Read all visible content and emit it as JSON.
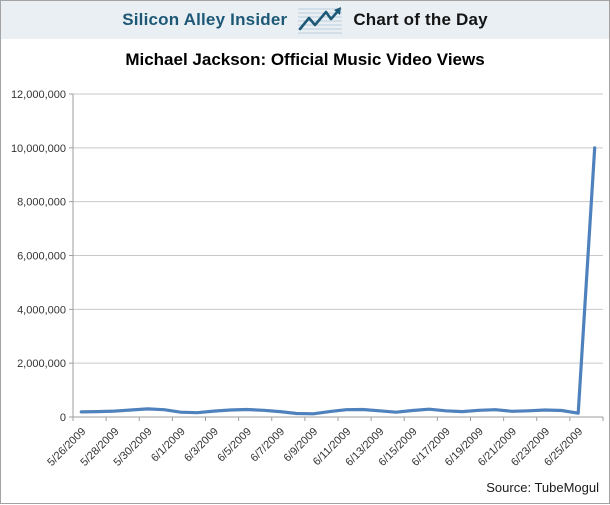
{
  "header": {
    "brand": "Silicon Alley Insider",
    "tagline": "Chart of the Day",
    "icon": "line-chart-icon"
  },
  "title": "Michael Jackson: Official Music Video Views",
  "source": "Source: TubeMogul",
  "colors": {
    "header_bg": "#eaeff4",
    "brand_text": "#1d5876",
    "line": "#4f81bd",
    "gridline": "#c9c9c9",
    "axis": "#9e9e9e",
    "page_border": "#a3a3a3"
  },
  "chart_data": {
    "type": "line",
    "title": "Michael Jackson: Official Music Video Views",
    "x": [
      "5/26/2009",
      "5/27/2009",
      "5/28/2009",
      "5/29/2009",
      "5/30/2009",
      "5/31/2009",
      "6/1/2009",
      "6/2/2009",
      "6/3/2009",
      "6/4/2009",
      "6/5/2009",
      "6/6/2009",
      "6/7/2009",
      "6/8/2009",
      "6/9/2009",
      "6/10/2009",
      "6/11/2009",
      "6/12/2009",
      "6/13/2009",
      "6/14/2009",
      "6/15/2009",
      "6/16/2009",
      "6/17/2009",
      "6/18/2009",
      "6/19/2009",
      "6/20/2009",
      "6/21/2009",
      "6/22/2009",
      "6/23/2009",
      "6/24/2009",
      "6/25/2009",
      "6/26/2009"
    ],
    "values": [
      190000,
      200000,
      220000,
      260000,
      300000,
      270000,
      180000,
      160000,
      220000,
      260000,
      280000,
      250000,
      200000,
      130000,
      120000,
      200000,
      270000,
      280000,
      230000,
      180000,
      240000,
      290000,
      230000,
      200000,
      250000,
      270000,
      210000,
      230000,
      260000,
      240000,
      140000,
      10000000
    ],
    "x_tick_labels": [
      "5/26/2009",
      "5/28/2009",
      "5/30/2009",
      "6/1/2009",
      "6/3/2009",
      "6/5/2009",
      "6/7/2009",
      "6/9/2009",
      "6/11/2009",
      "6/13/2009",
      "6/15/2009",
      "6/17/2009",
      "6/19/2009",
      "6/21/2009",
      "6/23/2009",
      "6/25/2009"
    ],
    "y_ticks": [
      0,
      2000000,
      4000000,
      6000000,
      8000000,
      10000000,
      12000000
    ],
    "y_tick_labels": [
      "0",
      "2,000,000",
      "4,000,000",
      "6,000,000",
      "8,000,000",
      "10,000,000",
      "12,000,000"
    ],
    "ylim": [
      0,
      12000000
    ],
    "xlabel": "",
    "ylabel": "",
    "grid": "horizontal",
    "legend": "none",
    "source": "Source: TubeMogul"
  }
}
